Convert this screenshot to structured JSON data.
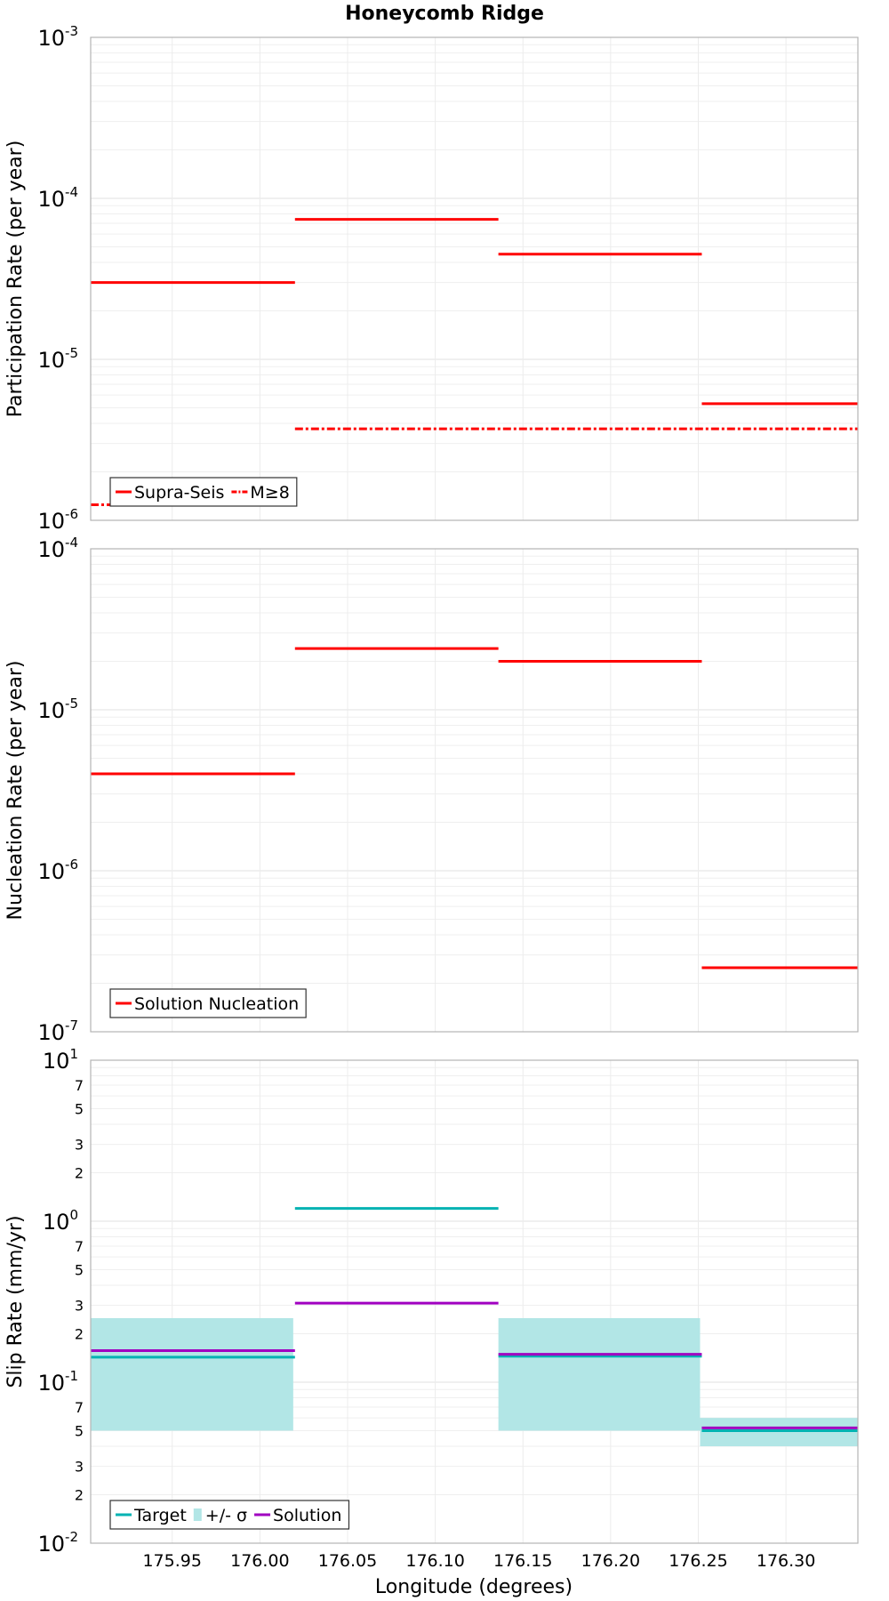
{
  "chart_data": [
    {
      "type": "line",
      "title": "Honeycomb Ridge",
      "ylabel": "Participation Rate (per year)",
      "yscale": "log",
      "ylim": [
        1e-06,
        0.001
      ],
      "xlim": [
        175.9035,
        176.341
      ],
      "y_ticks": [
        {
          "value": 1e-06,
          "base": "10",
          "exp": "-6"
        },
        {
          "value": 1e-05,
          "base": "10",
          "exp": "-5"
        },
        {
          "value": 0.0001,
          "base": "10",
          "exp": "-4"
        },
        {
          "value": 0.001,
          "base": "10",
          "exp": "-3"
        }
      ],
      "series": [
        {
          "name": "Supra-Seis",
          "color": "#ff0000",
          "dash": "solid",
          "segments": [
            [
              175.9035,
              176.02,
              3e-05
            ],
            [
              176.02,
              176.136,
              7.4e-05
            ],
            [
              176.136,
              176.252,
              4.5e-05
            ],
            [
              176.252,
              176.341,
              5.3e-06
            ]
          ]
        },
        {
          "name": "M≥8",
          "color": "#ff0000",
          "dash": "dashdot",
          "segments": [
            [
              175.9035,
              176.02,
              1.25e-06
            ],
            [
              176.02,
              176.341,
              3.7e-06
            ]
          ]
        }
      ],
      "legend": [
        {
          "label": "Supra-Seis",
          "kind": "line",
          "color": "#ff0000",
          "dash": "solid"
        },
        {
          "label": "M≥8",
          "kind": "line",
          "color": "#ff0000",
          "dash": "dashdot"
        }
      ],
      "legend_position": "bottom-left"
    },
    {
      "type": "line",
      "ylabel": "Nucleation Rate (per year)",
      "yscale": "log",
      "ylim": [
        1e-07,
        0.0001
      ],
      "xlim": [
        175.9035,
        176.341
      ],
      "y_ticks": [
        {
          "value": 1e-07,
          "base": "10",
          "exp": "-7"
        },
        {
          "value": 1e-06,
          "base": "10",
          "exp": "-6"
        },
        {
          "value": 1e-05,
          "base": "10",
          "exp": "-5"
        },
        {
          "value": 0.0001,
          "base": "10",
          "exp": "-4"
        }
      ],
      "series": [
        {
          "name": "Solution Nucleation",
          "color": "#ff0000",
          "dash": "solid",
          "segments": [
            [
              175.9035,
              176.02,
              4e-06
            ],
            [
              176.02,
              176.136,
              2.4e-05
            ],
            [
              176.136,
              176.252,
              2e-05
            ],
            [
              176.252,
              176.341,
              2.5e-07
            ]
          ]
        }
      ],
      "legend": [
        {
          "label": "Solution Nucleation",
          "kind": "line",
          "color": "#ff0000",
          "dash": "solid"
        }
      ],
      "legend_position": "bottom-left"
    },
    {
      "type": "line",
      "ylabel": "Slip Rate (mm/yr)",
      "xlabel": "Longitude (degrees)",
      "yscale": "log",
      "ylim": [
        0.01,
        10
      ],
      "xlim": [
        175.9035,
        176.341
      ],
      "x_ticks": [
        "175.95",
        "176.00",
        "176.05",
        "176.10",
        "176.15",
        "176.20",
        "176.25",
        "176.30"
      ],
      "y_ticks": [
        {
          "value": 0.01,
          "base": "10",
          "exp": "-2"
        },
        {
          "value": 0.1,
          "base": "10",
          "exp": "-1"
        },
        {
          "value": 1,
          "base": "10",
          "exp": "0"
        },
        {
          "value": 10,
          "base": "10",
          "exp": "1"
        }
      ],
      "y_minor_labels": [
        {
          "value": 0.02,
          "label": "2"
        },
        {
          "value": 0.03,
          "label": "3"
        },
        {
          "value": 0.05,
          "label": "5"
        },
        {
          "value": 0.07,
          "label": "7"
        },
        {
          "value": 0.2,
          "label": "2"
        },
        {
          "value": 0.3,
          "label": "3"
        },
        {
          "value": 0.5,
          "label": "5"
        },
        {
          "value": 0.7,
          "label": "7"
        },
        {
          "value": 2,
          "label": "2"
        },
        {
          "value": 3,
          "label": "3"
        },
        {
          "value": 5,
          "label": "5"
        },
        {
          "value": 7,
          "label": "7"
        }
      ],
      "bands": {
        "name": "+/- σ",
        "color": "#b2e6e6",
        "segments": [
          [
            175.9035,
            176.019,
            0.05,
            0.25
          ],
          [
            176.136,
            176.251,
            0.05,
            0.25
          ],
          [
            176.251,
            176.341,
            0.04,
            0.06
          ]
        ]
      },
      "series": [
        {
          "name": "Target",
          "color": "#00b2b2",
          "dash": "solid",
          "segments": [
            [
              175.9035,
              176.02,
              0.143
            ],
            [
              176.02,
              176.136,
              1.2
            ],
            [
              176.136,
              176.252,
              0.145
            ],
            [
              176.252,
              176.341,
              0.05
            ]
          ]
        },
        {
          "name": "Solution",
          "color": "#a000c0",
          "dash": "solid",
          "segments": [
            [
              175.9035,
              176.02,
              0.157
            ],
            [
              176.02,
              176.136,
              0.31
            ],
            [
              176.136,
              176.252,
              0.149
            ],
            [
              176.252,
              176.341,
              0.052
            ]
          ]
        }
      ],
      "legend": [
        {
          "label": "Target",
          "kind": "line",
          "color": "#00b2b2",
          "dash": "solid"
        },
        {
          "label": "+/- σ",
          "kind": "swatch",
          "color": "#b2e6e6"
        },
        {
          "label": "Solution",
          "kind": "line",
          "color": "#a000c0",
          "dash": "solid"
        }
      ],
      "legend_position": "bottom-left"
    }
  ]
}
